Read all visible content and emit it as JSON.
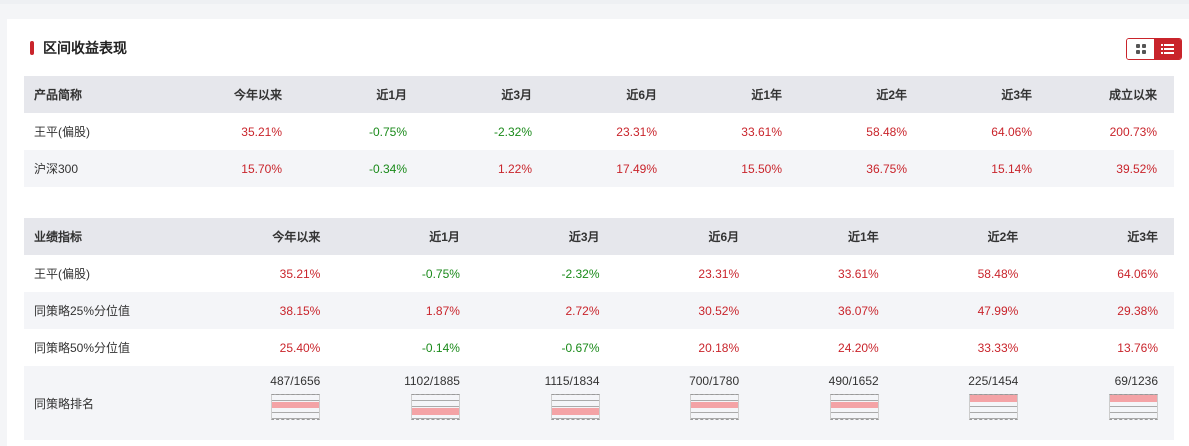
{
  "section": {
    "title": "区间收益表现"
  },
  "view_toggle": {
    "grid_icon": "grid-icon",
    "list_icon": "list-icon",
    "active": "list"
  },
  "colors": {
    "accent": "#c9242b",
    "positive": "#c9242b",
    "negative": "#1a8a1a",
    "quartile_fill": "#f4a3a6"
  },
  "returns_table": {
    "columns": [
      "产品简称",
      "今年以来",
      "近1月",
      "近3月",
      "近6月",
      "近1年",
      "近2年",
      "近3年",
      "成立以来"
    ],
    "rows": [
      {
        "name": "王平(偏股)",
        "values": [
          "35.21%",
          "-0.75%",
          "-2.32%",
          "23.31%",
          "33.61%",
          "58.48%",
          "64.06%",
          "200.73%"
        ]
      },
      {
        "name": "沪深300",
        "values": [
          "15.70%",
          "-0.34%",
          "1.22%",
          "17.49%",
          "15.50%",
          "36.75%",
          "15.14%",
          "39.52%"
        ]
      }
    ]
  },
  "metrics_table": {
    "columns": [
      "业绩指标",
      "今年以来",
      "近1月",
      "近3月",
      "近6月",
      "近1年",
      "近2年",
      "近3年"
    ],
    "rows": [
      {
        "name": "王平(偏股)",
        "values": [
          "35.21%",
          "-0.75%",
          "-2.32%",
          "23.31%",
          "33.61%",
          "58.48%",
          "64.06%"
        ]
      },
      {
        "name": "同策略25%分位值",
        "values": [
          "38.15%",
          "1.87%",
          "2.72%",
          "30.52%",
          "36.07%",
          "47.99%",
          "29.38%"
        ]
      },
      {
        "name": "同策略50%分位值",
        "values": [
          "25.40%",
          "-0.14%",
          "-0.67%",
          "20.18%",
          "24.20%",
          "33.33%",
          "13.76%"
        ]
      }
    ],
    "rank_row": {
      "name": "同策略排名",
      "values": [
        "487/1656",
        "1102/1885",
        "1115/1834",
        "700/1780",
        "490/1652",
        "225/1454",
        "69/1236"
      ],
      "quartile": [
        2,
        3,
        3,
        2,
        2,
        1,
        1
      ]
    }
  }
}
